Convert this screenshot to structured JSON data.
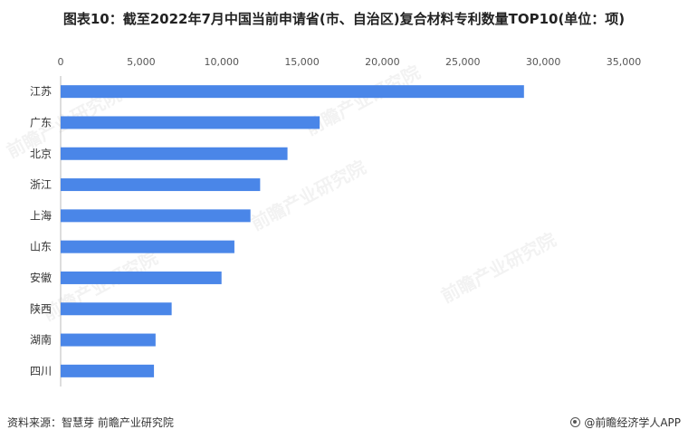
{
  "title": "图表10：截至2022年7月中国当前申请省(市、自治区)复合材料专利数量TOP10(单位：项)",
  "source": "资料来源：智慧芽 前瞻产业研究院",
  "brand": "@前瞻经济学人APP",
  "watermark": "前瞻产业研究院",
  "chart_data": {
    "type": "bar",
    "orientation": "horizontal",
    "title": "图表10：截至2022年7月中国当前申请省(市、自治区)复合材料专利数量TOP10(单位：项)",
    "categories": [
      "江苏",
      "广东",
      "北京",
      "浙江",
      "上海",
      "山东",
      "安徽",
      "陕西",
      "湖南",
      "四川"
    ],
    "values": [
      28800,
      16100,
      14100,
      12400,
      11800,
      10800,
      10000,
      6900,
      5900,
      5800
    ],
    "xlim": [
      0,
      35000
    ],
    "xticks": [
      "0",
      "5,000",
      "10,000",
      "15,000",
      "20,000",
      "25,000",
      "30,000",
      "35,000"
    ],
    "xtick_values": [
      0,
      5000,
      10000,
      15000,
      20000,
      25000,
      30000,
      35000
    ],
    "x_axis_position": "top",
    "grid": false,
    "legend": "none",
    "bar_color": "#4a86e8"
  }
}
